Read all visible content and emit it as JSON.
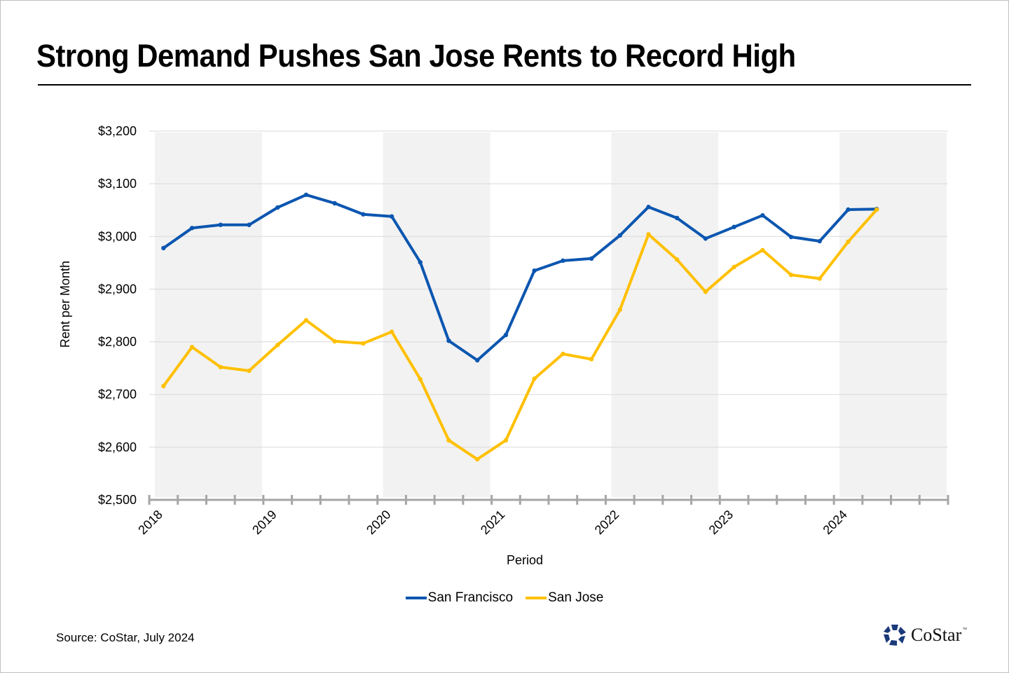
{
  "title": "Strong Demand Pushes San Jose Rents to Record High",
  "source": "Source: CoStar, July 2024",
  "logo": {
    "name": "CoStar",
    "tm": "™",
    "color": "#1b3a7a"
  },
  "colors": {
    "san_francisco": "#0b56b0",
    "san_jose": "#ffc000",
    "band": "#f2f2f2",
    "grid": "#d9d9d9",
    "axis": "#a6a6a6"
  },
  "chart_data": {
    "type": "line",
    "title": "Strong Demand Pushes San Jose Rents to Record High",
    "xlabel": "Period",
    "ylabel": "Rent per Month",
    "ylim": [
      2500,
      3200
    ],
    "yticks": [
      2500,
      2600,
      2700,
      2800,
      2900,
      3000,
      3100,
      3200
    ],
    "ytick_labels": [
      "$2,500",
      "$2,600",
      "$2,700",
      "$2,800",
      "$2,900",
      "$3,000",
      "$3,100",
      "$3,200"
    ],
    "xtick_labels": [
      "2018",
      "2019",
      "2020",
      "2021",
      "2022",
      "2023",
      "2024"
    ],
    "x_periods_total": 28,
    "shaded_years": [
      "2018",
      "2020",
      "2022",
      "2024"
    ],
    "grid": true,
    "legend_position": "bottom",
    "x": [
      "2018 Q1",
      "2018 Q2",
      "2018 Q3",
      "2018 Q4",
      "2019 Q1",
      "2019 Q2",
      "2019 Q3",
      "2019 Q4",
      "2020 Q1",
      "2020 Q2",
      "2020 Q3",
      "2020 Q4",
      "2021 Q1",
      "2021 Q2",
      "2021 Q3",
      "2021 Q4",
      "2022 Q1",
      "2022 Q2",
      "2022 Q3",
      "2022 Q4",
      "2023 Q1",
      "2023 Q2",
      "2023 Q3",
      "2023 Q4",
      "2024 Q1",
      "2024 Q2"
    ],
    "series": [
      {
        "name": "San Francisco",
        "color": "#0b56b0",
        "values": [
          2978,
          3016,
          3022,
          3022,
          3055,
          3079,
          3063,
          3042,
          3038,
          2951,
          2802,
          2765,
          2813,
          2935,
          2954,
          2958,
          3002,
          3056,
          3035,
          2996,
          3018,
          3040,
          2999,
          2991,
          3051,
          3052
        ]
      },
      {
        "name": "San Jose",
        "color": "#ffc000",
        "values": [
          2716,
          2790,
          2752,
          2745,
          2794,
          2841,
          2801,
          2797,
          2819,
          2729,
          2613,
          2577,
          2613,
          2730,
          2777,
          2767,
          2861,
          3004,
          2956,
          2895,
          2942,
          2974,
          2927,
          2920,
          2990,
          3051
        ]
      }
    ]
  }
}
